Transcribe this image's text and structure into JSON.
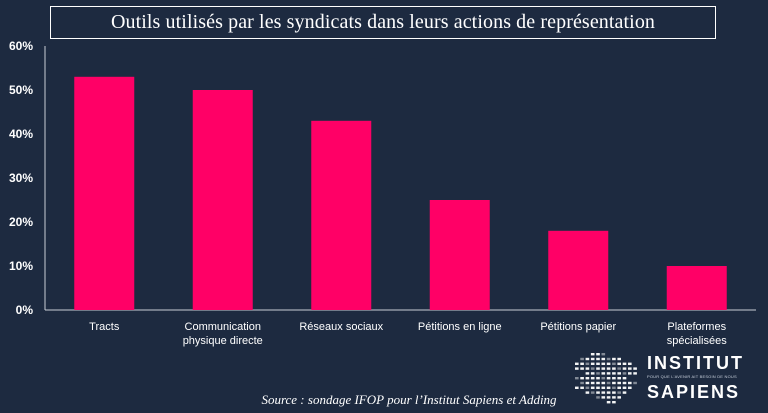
{
  "chart_data": {
    "type": "bar",
    "title": "Outils utilisés par les syndicats dans leurs actions de représentation",
    "categories": [
      [
        "Tracts"
      ],
      [
        "Communication",
        "physique directe"
      ],
      [
        "Réseaux sociaux"
      ],
      [
        "Pétitions en ligne"
      ],
      [
        "Pétitions papier"
      ],
      [
        "Plateformes",
        "spécialisées"
      ]
    ],
    "values": [
      53,
      50,
      43,
      25,
      18,
      10
    ],
    "ylim": [
      0,
      60
    ],
    "yticks": [
      "0%",
      "10%",
      "20%",
      "30%",
      "40%",
      "50%",
      "60%"
    ],
    "xlabel": "",
    "ylabel": "",
    "grid": false,
    "legend": "none",
    "bar_color": "#ff0066",
    "background": "#1d2a40",
    "axis_color": "#c9ced6",
    "text_color": "#ffffff"
  },
  "source": "Source : sondage IFOP pour l’Institut Sapiens et Adding",
  "logo": {
    "line1": "INSTITUT",
    "line2": "SAPIENS",
    "tagline": "POUR QUE L'AVENIR AIT BESOIN DE NOUS"
  }
}
